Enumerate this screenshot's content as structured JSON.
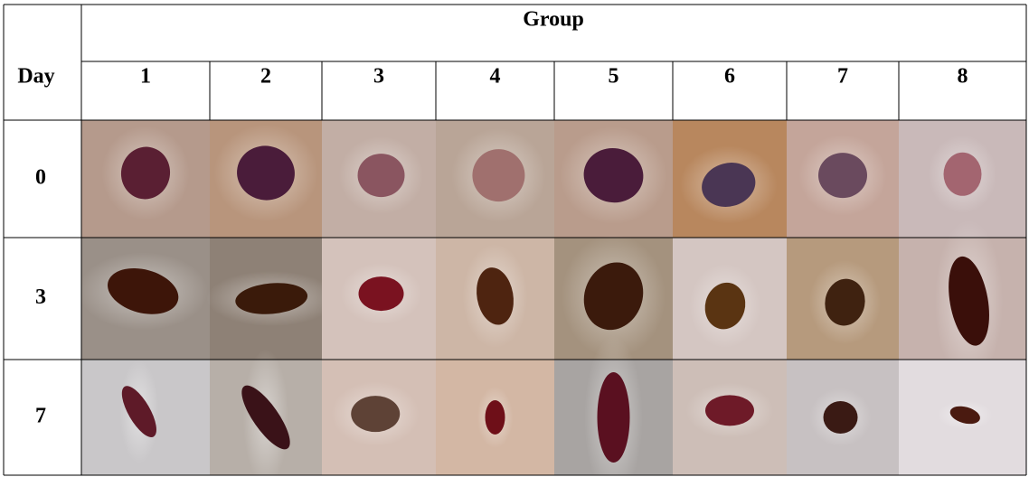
{
  "table": {
    "corner": "Day",
    "group_label": "Group",
    "columns": [
      "1",
      "2",
      "3",
      "4",
      "5",
      "6",
      "7",
      "8"
    ],
    "rows": [
      {
        "day": "0"
      },
      {
        "day": "3"
      },
      {
        "day": "7"
      }
    ]
  }
}
